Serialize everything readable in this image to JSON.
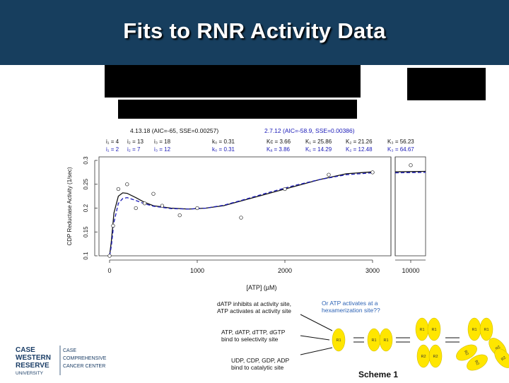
{
  "slide": {
    "title": "Fits to RNR Activity Data"
  },
  "colors": {
    "header_bg": "#173e5e",
    "fit_black": "#111111",
    "fit_blue": "#1a1ab8",
    "monomer_yellow": "#ffe600",
    "annotation_blue": "#2d63b5"
  },
  "chart_data": {
    "type": "scatter",
    "xlabel": "[ATP] (µM)",
    "ylabel": "CDP Reductase Activity (1/sec)",
    "x_ticks": [
      "0",
      "1000",
      "2000",
      "3000",
      "10000"
    ],
    "y_ticks": [
      "0.1",
      "0.15",
      "0.2",
      "0.25",
      "0.3"
    ],
    "ylim": [
      0.1,
      0.3
    ],
    "x_axis_break": "between 3000 and 10000",
    "points": [
      {
        "x": 0,
        "y": 0.1
      },
      {
        "x": 40,
        "y": 0.163
      },
      {
        "x": 100,
        "y": 0.24
      },
      {
        "x": 200,
        "y": 0.25
      },
      {
        "x": 300,
        "y": 0.2
      },
      {
        "x": 400,
        "y": 0.21
      },
      {
        "x": 500,
        "y": 0.23
      },
      {
        "x": 600,
        "y": 0.205
      },
      {
        "x": 800,
        "y": 0.185
      },
      {
        "x": 1000,
        "y": 0.2
      },
      {
        "x": 1500,
        "y": 0.18
      },
      {
        "x": 2000,
        "y": 0.24
      },
      {
        "x": 2500,
        "y": 0.27
      },
      {
        "x": 3000,
        "y": 0.275
      },
      {
        "x": 10000,
        "y": 0.29
      }
    ],
    "series": [
      {
        "color": "#111111",
        "points": [
          [
            0,
            0.1
          ],
          [
            20,
            0.13
          ],
          [
            50,
            0.19
          ],
          [
            100,
            0.225
          ],
          [
            150,
            0.232
          ],
          [
            200,
            0.231
          ],
          [
            300,
            0.222
          ],
          [
            400,
            0.212
          ],
          [
            500,
            0.205
          ],
          [
            700,
            0.2
          ],
          [
            900,
            0.198
          ],
          [
            1100,
            0.2
          ],
          [
            1300,
            0.205
          ],
          [
            1500,
            0.215
          ],
          [
            1800,
            0.23
          ],
          [
            2100,
            0.245
          ],
          [
            2400,
            0.26
          ],
          [
            2700,
            0.272
          ],
          [
            3000,
            0.276
          ],
          [
            10000,
            0.277
          ]
        ]
      },
      {
        "color": "#1a1ab8",
        "points": [
          [
            0,
            0.1
          ],
          [
            20,
            0.12
          ],
          [
            50,
            0.17
          ],
          [
            100,
            0.21
          ],
          [
            150,
            0.22
          ],
          [
            200,
            0.222
          ],
          [
            300,
            0.216
          ],
          [
            400,
            0.209
          ],
          [
            500,
            0.204
          ],
          [
            700,
            0.199
          ],
          [
            900,
            0.198
          ],
          [
            1100,
            0.2
          ],
          [
            1300,
            0.206
          ],
          [
            1500,
            0.216
          ],
          [
            1800,
            0.232
          ],
          [
            2100,
            0.247
          ],
          [
            2400,
            0.26
          ],
          [
            2700,
            0.27
          ],
          [
            3000,
            0.274
          ],
          [
            10000,
            0.275
          ]
        ]
      }
    ],
    "annotations": {
      "model_a_header": "4.13.18 (AIC=-65, SSE=0.00257)",
      "model_b_header": "2.7.12 (AIC=-58.9, SSE=0.00386)",
      "a_row1_i1": "i₁ = 4",
      "a_row1_i2": "i₂ = 13",
      "a_row1_i3": "i₃ = 18",
      "a_row1_k": "k₀ = 0.31",
      "a_row2_i1": "i₁ = 2",
      "a_row2_i2": "i₂ = 7",
      "a_row2_i3": "i₃ = 12",
      "a_row2_k": "k₀ = 0.31",
      "b_row1": [
        "Kᴄ = 3.66",
        "K₁ = 25.86",
        "K₂ = 21.26",
        "K₃ = 56.23"
      ],
      "b_row2": [
        "Kₐ = 3.86",
        "K₁ = 14.29",
        "K₂ = 12.48",
        "K₃ = 64.67"
      ]
    }
  },
  "scheme": {
    "note_blue": "Or ATP activates at a hexamerization site??",
    "note1": "dATP inhibits at activity site, ATP activates at activity site",
    "note2": "ATP, dATP, dTTP, dGTP bind to selectivity site",
    "note3": "UDP, CDP, GDP, ADP bind to catalytic site",
    "caption": "Scheme 1",
    "labels": {
      "r1": "R1",
      "r2": "R2"
    }
  },
  "logo": {
    "line1": "CASE",
    "line2": "WESTERN",
    "line3": "RESERVE",
    "line4": "UNIVERSITY",
    "right1": "CASE",
    "right2": "COMPREHENSIVE",
    "right3": "CANCER CENTER"
  }
}
